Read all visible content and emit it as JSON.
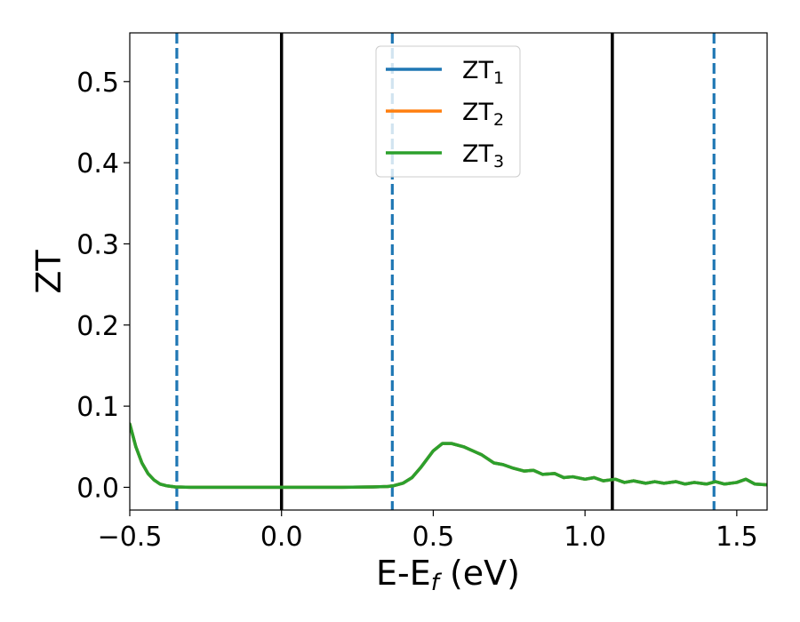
{
  "chart_data": {
    "type": "line",
    "xlabel": {
      "main": "E-E",
      "sub": "f",
      "unit": " (eV)"
    },
    "ylabel": "ZT",
    "xlim": [
      -0.5,
      1.6
    ],
    "ylim": [
      -0.028,
      0.56
    ],
    "x_ticks": [
      -0.5,
      0.0,
      0.5,
      1.0,
      1.5
    ],
    "x_tick_labels": [
      "−0.5",
      "0.0",
      "0.5",
      "1.0",
      "1.5"
    ],
    "y_ticks": [
      0.0,
      0.1,
      0.2,
      0.3,
      0.4,
      0.5
    ],
    "y_tick_labels": [
      "0.0",
      "0.1",
      "0.2",
      "0.3",
      "0.4",
      "0.5"
    ],
    "grid": false,
    "legend_position": "top-center",
    "series": [
      {
        "name": "ZT",
        "sub": "1",
        "color": "#1f77b4",
        "x": [
          -0.5,
          -0.48,
          -0.46,
          -0.44,
          -0.42,
          -0.4,
          -0.38,
          -0.35,
          -0.3,
          -0.2,
          0.0,
          0.2,
          0.3,
          0.35,
          0.37,
          0.4,
          0.43,
          0.46,
          0.5,
          0.53,
          0.56,
          0.6,
          0.63,
          0.66,
          0.7,
          0.73,
          0.76,
          0.8,
          0.83,
          0.86,
          0.9,
          0.93,
          0.96,
          1.0,
          1.03,
          1.06,
          1.1,
          1.13,
          1.16,
          1.2,
          1.23,
          1.26,
          1.3,
          1.33,
          1.36,
          1.4,
          1.43,
          1.46,
          1.5,
          1.53,
          1.56,
          1.6
        ],
        "y": [
          0.078,
          0.05,
          0.03,
          0.017,
          0.009,
          0.004,
          0.002,
          0.0005,
          0.0,
          0.0,
          0.0,
          0.0,
          0.0005,
          0.001,
          0.002,
          0.005,
          0.012,
          0.025,
          0.045,
          0.054,
          0.054,
          0.05,
          0.045,
          0.04,
          0.03,
          0.028,
          0.024,
          0.02,
          0.021,
          0.016,
          0.017,
          0.012,
          0.013,
          0.01,
          0.012,
          0.008,
          0.01,
          0.006,
          0.008,
          0.005,
          0.007,
          0.005,
          0.007,
          0.004,
          0.006,
          0.004,
          0.007,
          0.004,
          0.006,
          0.01,
          0.004,
          0.003
        ]
      },
      {
        "name": "ZT",
        "sub": "2",
        "color": "#ff7f0e",
        "x": [
          -0.5,
          -0.48,
          -0.46,
          -0.44,
          -0.42,
          -0.4,
          -0.38,
          -0.35,
          -0.3,
          -0.2,
          0.0,
          0.2,
          0.3,
          0.35,
          0.37,
          0.4,
          0.43,
          0.46,
          0.5,
          0.53,
          0.56,
          0.6,
          0.63,
          0.66,
          0.7,
          0.73,
          0.76,
          0.8,
          0.83,
          0.86,
          0.9,
          0.93,
          0.96,
          1.0,
          1.03,
          1.06,
          1.1,
          1.13,
          1.16,
          1.2,
          1.23,
          1.26,
          1.3,
          1.33,
          1.36,
          1.4,
          1.43,
          1.46,
          1.5,
          1.53,
          1.56,
          1.6
        ],
        "y": [
          0.078,
          0.05,
          0.03,
          0.017,
          0.009,
          0.004,
          0.002,
          0.0005,
          0.0,
          0.0,
          0.0,
          0.0,
          0.0005,
          0.001,
          0.002,
          0.005,
          0.012,
          0.025,
          0.045,
          0.054,
          0.054,
          0.05,
          0.045,
          0.04,
          0.03,
          0.028,
          0.024,
          0.02,
          0.021,
          0.016,
          0.017,
          0.012,
          0.013,
          0.01,
          0.012,
          0.008,
          0.01,
          0.006,
          0.008,
          0.005,
          0.007,
          0.005,
          0.007,
          0.004,
          0.006,
          0.004,
          0.007,
          0.004,
          0.006,
          0.01,
          0.004,
          0.003
        ]
      },
      {
        "name": "ZT",
        "sub": "3",
        "color": "#2ca02c",
        "x": [
          -0.5,
          -0.48,
          -0.46,
          -0.44,
          -0.42,
          -0.4,
          -0.38,
          -0.35,
          -0.3,
          -0.2,
          0.0,
          0.2,
          0.3,
          0.35,
          0.37,
          0.4,
          0.43,
          0.46,
          0.5,
          0.53,
          0.56,
          0.6,
          0.63,
          0.66,
          0.7,
          0.73,
          0.76,
          0.8,
          0.83,
          0.86,
          0.9,
          0.93,
          0.96,
          1.0,
          1.03,
          1.06,
          1.1,
          1.13,
          1.16,
          1.2,
          1.23,
          1.26,
          1.3,
          1.33,
          1.36,
          1.4,
          1.43,
          1.46,
          1.5,
          1.53,
          1.56,
          1.6
        ],
        "y": [
          0.078,
          0.05,
          0.03,
          0.017,
          0.009,
          0.004,
          0.002,
          0.0005,
          0.0,
          0.0,
          0.0,
          0.0,
          0.0005,
          0.001,
          0.002,
          0.005,
          0.012,
          0.025,
          0.045,
          0.054,
          0.054,
          0.05,
          0.045,
          0.04,
          0.03,
          0.028,
          0.024,
          0.02,
          0.021,
          0.016,
          0.017,
          0.012,
          0.013,
          0.01,
          0.012,
          0.008,
          0.01,
          0.006,
          0.008,
          0.005,
          0.007,
          0.005,
          0.007,
          0.004,
          0.006,
          0.004,
          0.007,
          0.004,
          0.006,
          0.01,
          0.004,
          0.003
        ]
      }
    ],
    "vertical_lines": [
      {
        "x": -0.345,
        "style": "dashed",
        "color": "#1f77b4"
      },
      {
        "x": 0.0,
        "style": "solid",
        "color": "#000000"
      },
      {
        "x": 0.365,
        "style": "dashed",
        "color": "#1f77b4"
      },
      {
        "x": 1.09,
        "style": "solid",
        "color": "#000000"
      },
      {
        "x": 1.425,
        "style": "dashed",
        "color": "#1f77b4"
      }
    ]
  }
}
